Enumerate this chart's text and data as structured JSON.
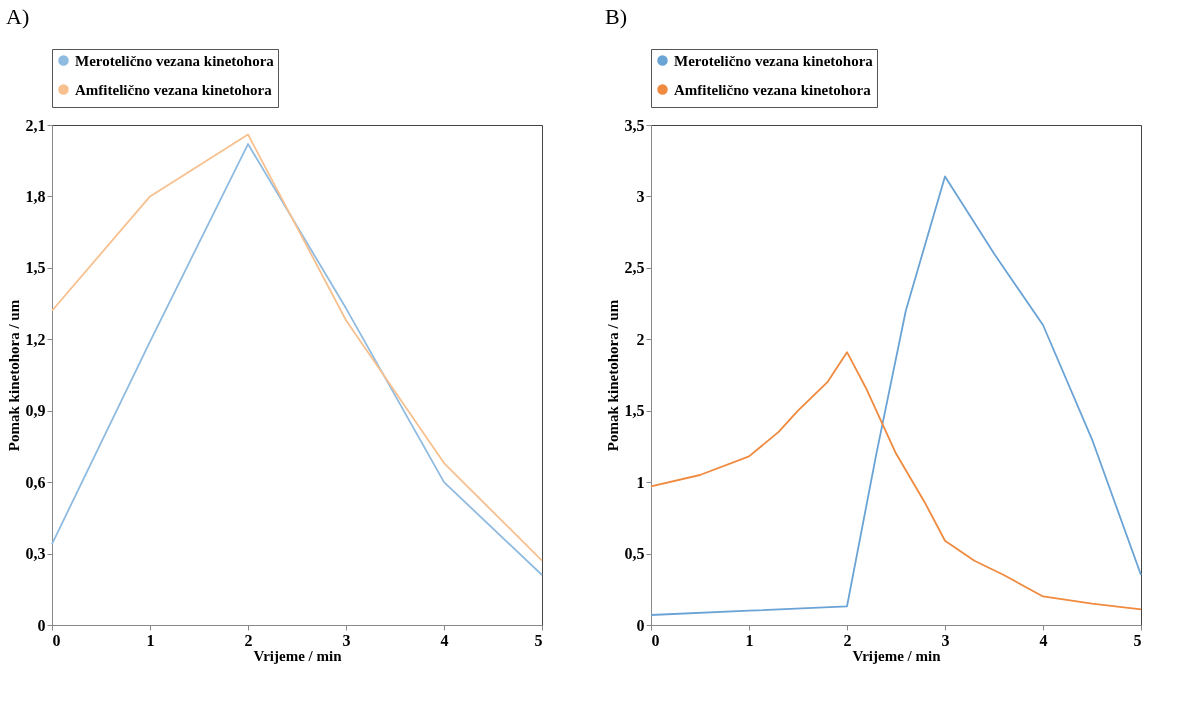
{
  "chart_data": [
    {
      "type": "line",
      "title": "A)",
      "xlabel": "Vrijeme / min",
      "ylabel": "Pomak kinetohora / um",
      "legend": "top",
      "grid": false,
      "marker": "none",
      "line_style": "solid",
      "xlim": [
        0,
        5
      ],
      "xticks": [
        0,
        1,
        2,
        3,
        4,
        5
      ],
      "ylim": [
        0,
        2.1
      ],
      "yticks": [
        0,
        {
          "value": 0.3,
          "label": "0,3"
        },
        {
          "value": 0.6,
          "label": "0,6"
        },
        {
          "value": 0.9,
          "label": "0,9"
        },
        {
          "value": 1.2,
          "label": "1,2"
        },
        {
          "value": 1.5,
          "label": "1,5"
        },
        {
          "value": 1.8,
          "label": "1,8"
        },
        {
          "value": 2.1,
          "label": "2,1"
        }
      ],
      "series": [
        {
          "name": "Merotelično vezana kinetohora",
          "color": "#8fbbe0",
          "x": [
            0,
            1,
            2,
            3,
            4,
            5
          ],
          "values": [
            0.34,
            1.19,
            2.02,
            1.33,
            0.6,
            0.21
          ]
        },
        {
          "name": "Amfitelično vezana kinetohora",
          "color": "#f7c08e",
          "x": [
            0,
            1,
            2,
            3,
            4,
            5
          ],
          "values": [
            1.32,
            1.8,
            2.06,
            1.28,
            0.68,
            0.27
          ]
        }
      ]
    },
    {
      "type": "line",
      "title": "B)",
      "xlabel": "Vrijeme / min",
      "ylabel": "Pomak kinetohora / um",
      "legend": "top",
      "grid": false,
      "marker": "none",
      "line_style": "solid",
      "xlim": [
        0,
        5
      ],
      "xticks": [
        0,
        1,
        2,
        3,
        4,
        5
      ],
      "ylim": [
        0,
        3.5
      ],
      "yticks": [
        0,
        {
          "value": 0.5,
          "label": "0,5"
        },
        1,
        {
          "value": 1.5,
          "label": "1,5"
        },
        2,
        {
          "value": 2.5,
          "label": "2,5"
        },
        3,
        {
          "value": 3.5,
          "label": "3,5"
        }
      ],
      "series": [
        {
          "name": "Merotelično vezana kinetohora",
          "color": "#6aa3d5",
          "x": [
            0,
            1,
            2,
            2.3,
            2.6,
            3,
            3.5,
            4,
            4.5,
            5
          ],
          "values": [
            0.07,
            0.1,
            0.13,
            1.2,
            2.2,
            3.14,
            2.6,
            2.1,
            1.3,
            0.35
          ]
        },
        {
          "name": "Amfitelično vezana kinetohora",
          "color": "#ef8a3f",
          "x": [
            0,
            0.5,
            1,
            1.3,
            1.5,
            1.8,
            2,
            2.2,
            2.5,
            2.8,
            3,
            3.3,
            3.6,
            4,
            4.5,
            5
          ],
          "values": [
            0.97,
            1.05,
            1.18,
            1.35,
            1.5,
            1.7,
            1.91,
            1.65,
            1.2,
            0.85,
            0.59,
            0.45,
            0.35,
            0.2,
            0.15,
            0.11
          ]
        }
      ]
    }
  ]
}
